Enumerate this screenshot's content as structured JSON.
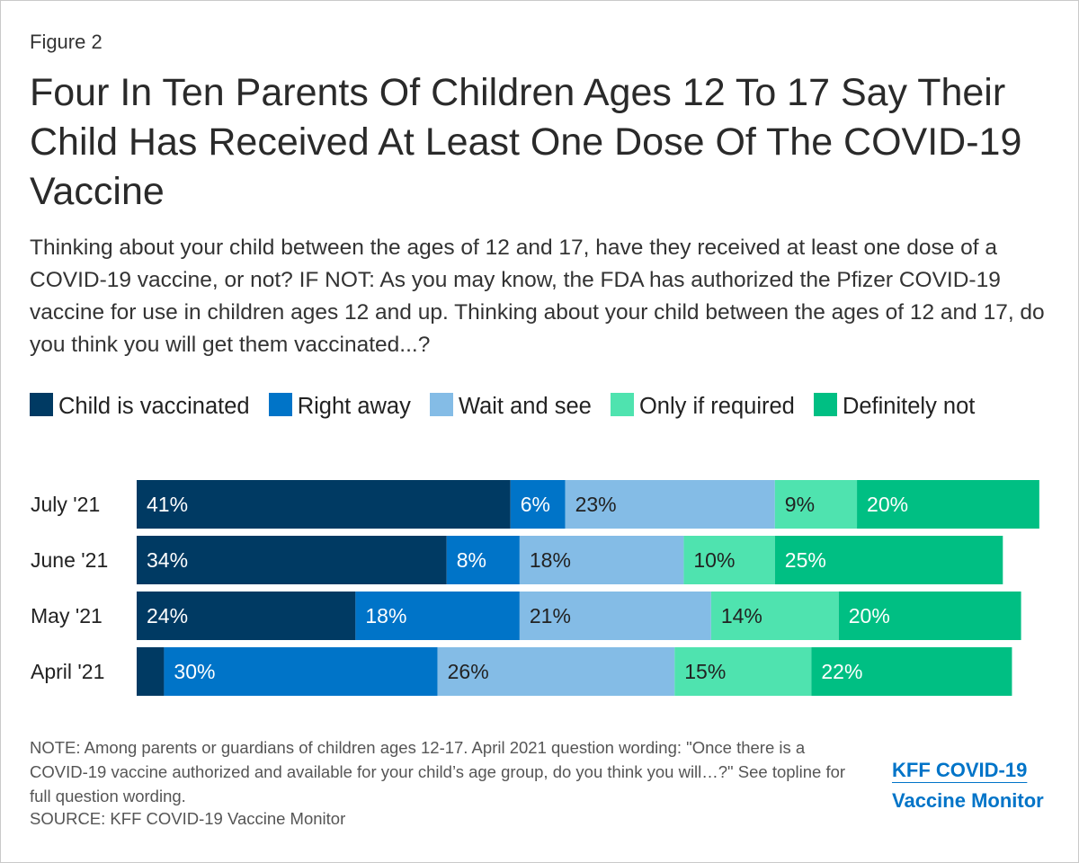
{
  "figure_label": "Figure 2",
  "title": "Four In Ten Parents Of Children Ages 12 To 17 Say Their Child Has Received At Least One Dose Of The COVID-19 Vaccine",
  "subtitle": "Thinking about your child between the ages of 12 and 17, have they received at least one dose of a COVID-19 vaccine, or not? IF NOT: As you may know, the FDA has authorized the Pfizer COVID-19 vaccine for use in children ages 12 and up. Thinking about your child between the ages of 12 and 17, do you think you will get them vaccinated...?",
  "note": "NOTE: Among parents or guardians of children ages 12-17. April 2021 question wording: \"Once there is a COVID-19 vaccine authorized and available for your child’s age group, do you think you will…?\" See topline for full question wording.",
  "source": "SOURCE: KFF COVID-19 Vaccine Monitor",
  "brand": {
    "line1": "KFF COVID-19",
    "line2": "Vaccine Monitor"
  },
  "chart_data": {
    "type": "bar",
    "orientation": "horizontal-stacked",
    "categories": [
      "July '21",
      "June '21",
      "May '21",
      "April '21"
    ],
    "series": [
      {
        "name": "Child is vaccinated",
        "color": "#003a63",
        "values": [
          41,
          34,
          24,
          3
        ],
        "labels": [
          "41%",
          "34%",
          "24%",
          ""
        ],
        "label_style": "light"
      },
      {
        "name": "Right away",
        "color": "#0074c8",
        "values": [
          6,
          8,
          18,
          30
        ],
        "labels": [
          "6%",
          "8%",
          "18%",
          "30%"
        ],
        "label_style": "light"
      },
      {
        "name": "Wait and see",
        "color": "#84bce6",
        "values": [
          23,
          18,
          21,
          26
        ],
        "labels": [
          "23%",
          "18%",
          "21%",
          "26%"
        ],
        "label_style": "dark"
      },
      {
        "name": "Only if required",
        "color": "#4fe3af",
        "values": [
          9,
          10,
          14,
          15
        ],
        "labels": [
          "9%",
          "10%",
          "14%",
          "15%"
        ],
        "label_style": "dark"
      },
      {
        "name": "Definitely not",
        "color": "#00bf83",
        "values": [
          20,
          25,
          20,
          22
        ],
        "labels": [
          "20%",
          "25%",
          "20%",
          "22%"
        ],
        "label_style": "light"
      }
    ],
    "xlim": [
      0,
      100
    ],
    "legend": "top"
  }
}
